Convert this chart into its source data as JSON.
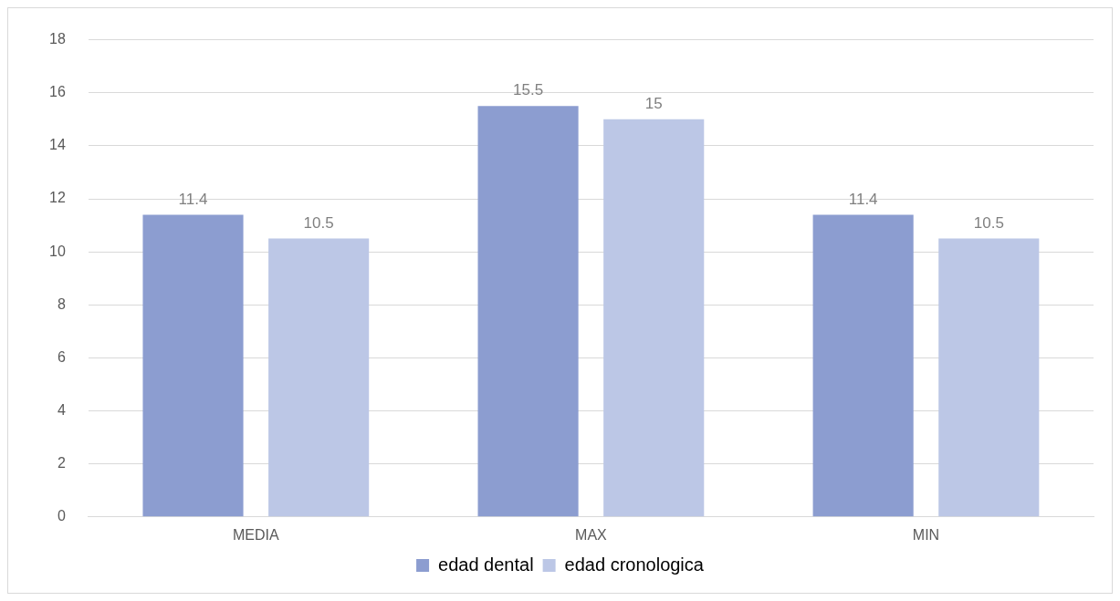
{
  "chart_data": {
    "type": "bar",
    "categories": [
      "MEDIA",
      "MAX",
      "MIN"
    ],
    "series": [
      {
        "name": "edad dental",
        "color": "#8c9dd0",
        "values": [
          11.4,
          15.5,
          11.4
        ]
      },
      {
        "name": "edad cronologica",
        "color": "#bcc7e6",
        "values": [
          10.5,
          15,
          10.5
        ]
      }
    ],
    "ylim": [
      0,
      18
    ],
    "yticks": [
      0,
      2,
      4,
      6,
      8,
      10,
      12,
      14,
      16,
      18
    ],
    "grid": "y",
    "legend": "bottom",
    "data_labels": true
  }
}
